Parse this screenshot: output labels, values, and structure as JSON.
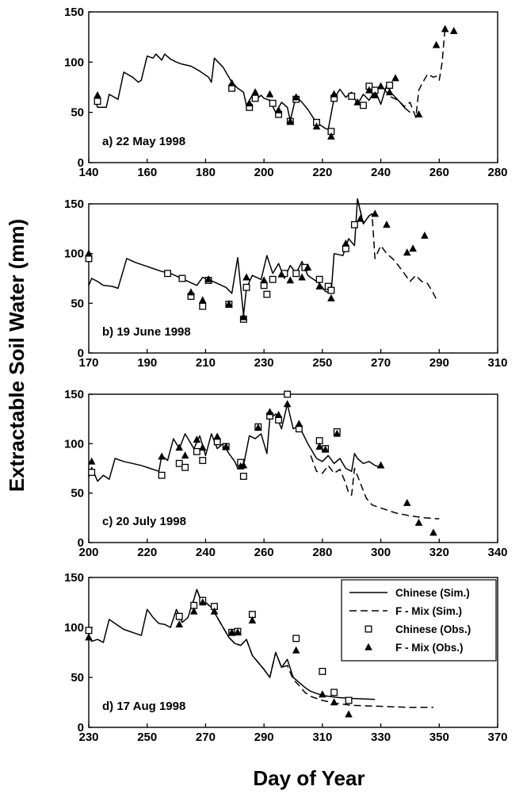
{
  "figure": {
    "ylabel": "Extractable Soil Water (mm)",
    "xlabel": "Day of Year"
  },
  "legend": {
    "placement": "top-right of panel d",
    "items": [
      {
        "label": "Chinese (Sim.)",
        "style": "solid"
      },
      {
        "label": "F - Mix (Sim.)",
        "style": "dashed"
      },
      {
        "label": "Chinese (Obs.)",
        "style": "open-square"
      },
      {
        "label": "F - Mix (Obs.)",
        "style": "filled-triangle"
      }
    ]
  },
  "chart_data": [
    {
      "type": "line",
      "panel_label": "a) 22 May 1998",
      "xlim": [
        140,
        280
      ],
      "xticks": [
        140,
        160,
        180,
        200,
        220,
        240,
        260,
        280
      ],
      "ylim": [
        0,
        150
      ],
      "yticks": [
        0,
        50,
        100,
        150
      ],
      "series": [
        {
          "name": "Chinese (Sim.)",
          "kind": "line",
          "style": "solid",
          "x": [
            142,
            143,
            146,
            147,
            150,
            152,
            155,
            157,
            158,
            160,
            162,
            163,
            165,
            166,
            168,
            170,
            172,
            175,
            178,
            181,
            182,
            183,
            186,
            189,
            191,
            193,
            194,
            196,
            197,
            199,
            200,
            202,
            204,
            206,
            208,
            209,
            211,
            213,
            215,
            217,
            219,
            221,
            222,
            224,
            226,
            228,
            230,
            232,
            234,
            236,
            238,
            240,
            242,
            244,
            246,
            248,
            250
          ],
          "y": [
            65,
            55,
            55,
            68,
            63,
            90,
            85,
            80,
            82,
            106,
            104,
            108,
            102,
            108,
            103,
            100,
            98,
            96,
            91,
            85,
            80,
            104,
            95,
            80,
            74,
            70,
            57,
            67,
            62,
            67,
            64,
            62,
            50,
            60,
            55,
            42,
            66,
            60,
            53,
            44,
            38,
            34,
            33,
            64,
            73,
            65,
            70,
            58,
            68,
            62,
            72,
            58,
            77,
            68,
            62,
            55,
            50
          ]
        },
        {
          "name": "F - Mix (Sim.)",
          "kind": "line",
          "style": "dashed",
          "x": [
            241,
            243,
            246,
            248,
            250,
            252,
            253,
            254,
            256,
            258,
            259,
            260,
            261,
            262
          ],
          "y": [
            74,
            66,
            62,
            56,
            60,
            45,
            72,
            78,
            88,
            85,
            86,
            82,
            100,
            135
          ]
        },
        {
          "name": "Chinese (Obs.)",
          "kind": "scatter",
          "marker": "open-square",
          "x": [
            143,
            189,
            195,
            197,
            203,
            205,
            209,
            211,
            218,
            223,
            224,
            230,
            234,
            236,
            238,
            243
          ],
          "y": [
            61,
            74,
            55,
            64,
            59,
            48,
            41,
            63,
            40,
            31,
            64,
            66,
            57,
            76,
            72,
            77
          ]
        },
        {
          "name": "F - Mix (Obs.)",
          "kind": "scatter",
          "marker": "filled-triangle",
          "x": [
            143,
            189,
            195,
            197,
            202,
            205,
            209,
            211,
            218,
            223,
            224,
            232,
            236,
            238,
            240,
            243,
            245,
            253,
            259,
            262,
            265
          ],
          "y": [
            67,
            79,
            59,
            70,
            68,
            52,
            41,
            65,
            36,
            26,
            68,
            60,
            72,
            67,
            76,
            70,
            84,
            48,
            117,
            133,
            131
          ]
        }
      ]
    },
    {
      "type": "line",
      "panel_label": "b) 19 June 1998",
      "xlim": [
        170,
        310
      ],
      "xticks": [
        170,
        190,
        210,
        230,
        250,
        270,
        290,
        310
      ],
      "ylim": [
        0,
        150
      ],
      "yticks": [
        0,
        50,
        100,
        150
      ],
      "series": [
        {
          "name": "Chinese (Sim.)",
          "kind": "line",
          "style": "solid",
          "x": [
            170,
            171,
            173,
            175,
            178,
            180,
            183,
            186,
            189,
            192,
            195,
            198,
            201,
            204,
            207,
            209,
            211,
            214,
            217,
            219,
            221,
            223,
            224,
            226,
            229,
            231,
            233,
            235,
            237,
            239,
            241,
            243,
            245,
            247,
            249,
            251,
            253,
            254,
            257,
            259,
            261,
            262,
            264,
            266
          ],
          "y": [
            68,
            75,
            72,
            68,
            67,
            65,
            95,
            91,
            88,
            85,
            82,
            80,
            76,
            72,
            68,
            76,
            74,
            70,
            66,
            60,
            96,
            38,
            65,
            78,
            74,
            98,
            80,
            90,
            75,
            88,
            80,
            92,
            78,
            74,
            70,
            62,
            60,
            100,
            98,
            115,
            108,
            155,
            130,
            138
          ]
        },
        {
          "name": "F - Mix (Sim.)",
          "kind": "line",
          "style": "dashed",
          "x": [
            262,
            264,
            266,
            267,
            268,
            270,
            272,
            274,
            276,
            278,
            280,
            282,
            284,
            286,
            288,
            289
          ],
          "y": [
            155,
            130,
            138,
            140,
            95,
            108,
            100,
            95,
            88,
            80,
            72,
            78,
            72,
            70,
            60,
            54
          ]
        },
        {
          "name": "Chinese (Obs.)",
          "kind": "scatter",
          "marker": "open-square",
          "x": [
            170,
            197,
            202,
            205,
            209,
            211,
            218,
            223,
            224,
            230,
            231,
            233,
            237,
            241,
            244,
            249,
            252,
            253,
            258,
            261
          ],
          "y": [
            95,
            80,
            75,
            57,
            47,
            73,
            49,
            34,
            66,
            68,
            59,
            74,
            80,
            80,
            86,
            74,
            67,
            63,
            105,
            129
          ]
        },
        {
          "name": "F - Mix (Obs.)",
          "kind": "scatter",
          "marker": "filled-triangle",
          "x": [
            170,
            205,
            209,
            211,
            218,
            223,
            224,
            230,
            236,
            239,
            243,
            245,
            249,
            253,
            258,
            263,
            268,
            272,
            279,
            281,
            285
          ],
          "y": [
            100,
            61,
            53,
            74,
            49,
            36,
            76,
            73,
            79,
            73,
            76,
            86,
            67,
            55,
            110,
            135,
            140,
            129,
            101,
            105,
            118
          ]
        }
      ]
    },
    {
      "type": "line",
      "panel_label": "c) 20 July 1998",
      "xlim": [
        200,
        340
      ],
      "xticks": [
        200,
        220,
        240,
        260,
        280,
        300,
        320,
        340
      ],
      "ylim": [
        0,
        150
      ],
      "yticks": [
        0,
        50,
        100,
        150
      ],
      "series": [
        {
          "name": "Chinese (Sim.)",
          "kind": "line",
          "style": "solid",
          "x": [
            200,
            201,
            203,
            205,
            207,
            209,
            212,
            215,
            218,
            221,
            224,
            225,
            227,
            229,
            231,
            233,
            236,
            238,
            240,
            242,
            244,
            246,
            248,
            250,
            251,
            253,
            255,
            257,
            259,
            261,
            262,
            264,
            266,
            268,
            270,
            272,
            275,
            278,
            280,
            282,
            284,
            286,
            288,
            290,
            291,
            292,
            294,
            296,
            298,
            300
          ],
          "y": [
            66,
            76,
            62,
            68,
            64,
            85,
            82,
            80,
            78,
            75,
            72,
            88,
            83,
            105,
            95,
            110,
            95,
            108,
            88,
            110,
            95,
            100,
            90,
            82,
            75,
            78,
            108,
            105,
            110,
            90,
            125,
            130,
            115,
            140,
            115,
            118,
            100,
            85,
            82,
            88,
            80,
            85,
            75,
            72,
            90,
            85,
            80,
            82,
            78,
            76
          ]
        },
        {
          "name": "F - Mix (Sim.)",
          "kind": "line",
          "style": "dashed",
          "x": [
            276,
            278,
            280,
            282,
            284,
            286,
            288,
            289,
            290,
            291,
            293,
            295,
            297,
            300,
            305,
            310,
            315,
            320
          ],
          "y": [
            88,
            72,
            70,
            78,
            70,
            74,
            60,
            50,
            48,
            75,
            60,
            45,
            38,
            35,
            30,
            27,
            25,
            24
          ]
        },
        {
          "name": "Chinese (Obs.)",
          "kind": "scatter",
          "marker": "open-square",
          "x": [
            201,
            225,
            231,
            233,
            237,
            239,
            244,
            247,
            252,
            253,
            258,
            262,
            265,
            268,
            272,
            279,
            281,
            285
          ],
          "y": [
            71,
            68,
            80,
            76,
            92,
            83,
            102,
            97,
            81,
            67,
            117,
            128,
            124,
            150,
            115,
            103,
            95,
            112
          ]
        },
        {
          "name": "F - Mix (Obs.)",
          "kind": "scatter",
          "marker": "filled-triangle",
          "x": [
            201,
            225,
            231,
            233,
            237,
            239,
            244,
            247,
            252,
            253,
            258,
            262,
            265,
            268,
            272,
            279,
            281,
            285,
            300,
            309,
            313,
            318
          ],
          "y": [
            82,
            87,
            96,
            88,
            104,
            96,
            107,
            97,
            77,
            78,
            116,
            132,
            129,
            140,
            120,
            97,
            94,
            110,
            78,
            40,
            20,
            10
          ]
        }
      ]
    },
    {
      "type": "line",
      "panel_label": "d) 17 Aug 1998",
      "xlim": [
        230,
        370
      ],
      "xticks": [
        230,
        250,
        270,
        290,
        310,
        330,
        350,
        370
      ],
      "ylim": [
        0,
        150
      ],
      "yticks": [
        0,
        50,
        100,
        150
      ],
      "series": [
        {
          "name": "Chinese (Sim.)",
          "kind": "line",
          "style": "solid",
          "x": [
            230,
            231,
            233,
            235,
            237,
            239,
            241,
            242,
            244,
            246,
            248,
            250,
            252,
            254,
            256,
            258,
            260,
            262,
            264,
            265,
            266,
            267,
            268,
            270,
            272,
            274,
            276,
            278,
            280,
            282,
            284,
            286,
            288,
            290,
            292,
            294,
            296,
            298,
            300,
            302,
            304,
            306,
            308,
            310,
            315,
            320,
            328
          ],
          "y": [
            92,
            86,
            88,
            85,
            108,
            104,
            100,
            98,
            96,
            94,
            92,
            118,
            110,
            104,
            103,
            100,
            118,
            105,
            110,
            120,
            128,
            138,
            130,
            125,
            120,
            110,
            100,
            90,
            84,
            82,
            88,
            72,
            65,
            58,
            50,
            75,
            60,
            68,
            50,
            45,
            40,
            36,
            34,
            32,
            30,
            29,
            28
          ]
        },
        {
          "name": "F - Mix (Sim.)",
          "kind": "line",
          "style": "dashed",
          "x": [
            265,
            266,
            267,
            268,
            270,
            272,
            274,
            276,
            278,
            280,
            282,
            284,
            286,
            288,
            290,
            292,
            294,
            296,
            298,
            300,
            302,
            304,
            306,
            308,
            310,
            315,
            320,
            330,
            340,
            348
          ],
          "y": [
            120,
            128,
            138,
            130,
            125,
            120,
            110,
            100,
            90,
            84,
            82,
            88,
            72,
            65,
            58,
            50,
            75,
            60,
            62,
            48,
            42,
            35,
            31,
            29,
            27,
            24,
            22,
            21,
            20,
            20
          ]
        },
        {
          "name": "Chinese (Obs.)",
          "kind": "scatter",
          "marker": "open-square",
          "x": [
            230,
            261,
            266,
            269,
            273,
            279,
            281,
            286,
            301,
            310,
            314,
            319
          ],
          "y": [
            97,
            111,
            122,
            127,
            121,
            95,
            96,
            113,
            89,
            56,
            35,
            27
          ]
        },
        {
          "name": "F - Mix (Obs.)",
          "kind": "scatter",
          "marker": "filled-triangle",
          "x": [
            230,
            261,
            266,
            269,
            273,
            279,
            281,
            286,
            301,
            310,
            314,
            319
          ],
          "y": [
            90,
            103,
            116,
            125,
            116,
            95,
            95,
            107,
            77,
            33,
            25,
            13
          ]
        }
      ]
    }
  ]
}
